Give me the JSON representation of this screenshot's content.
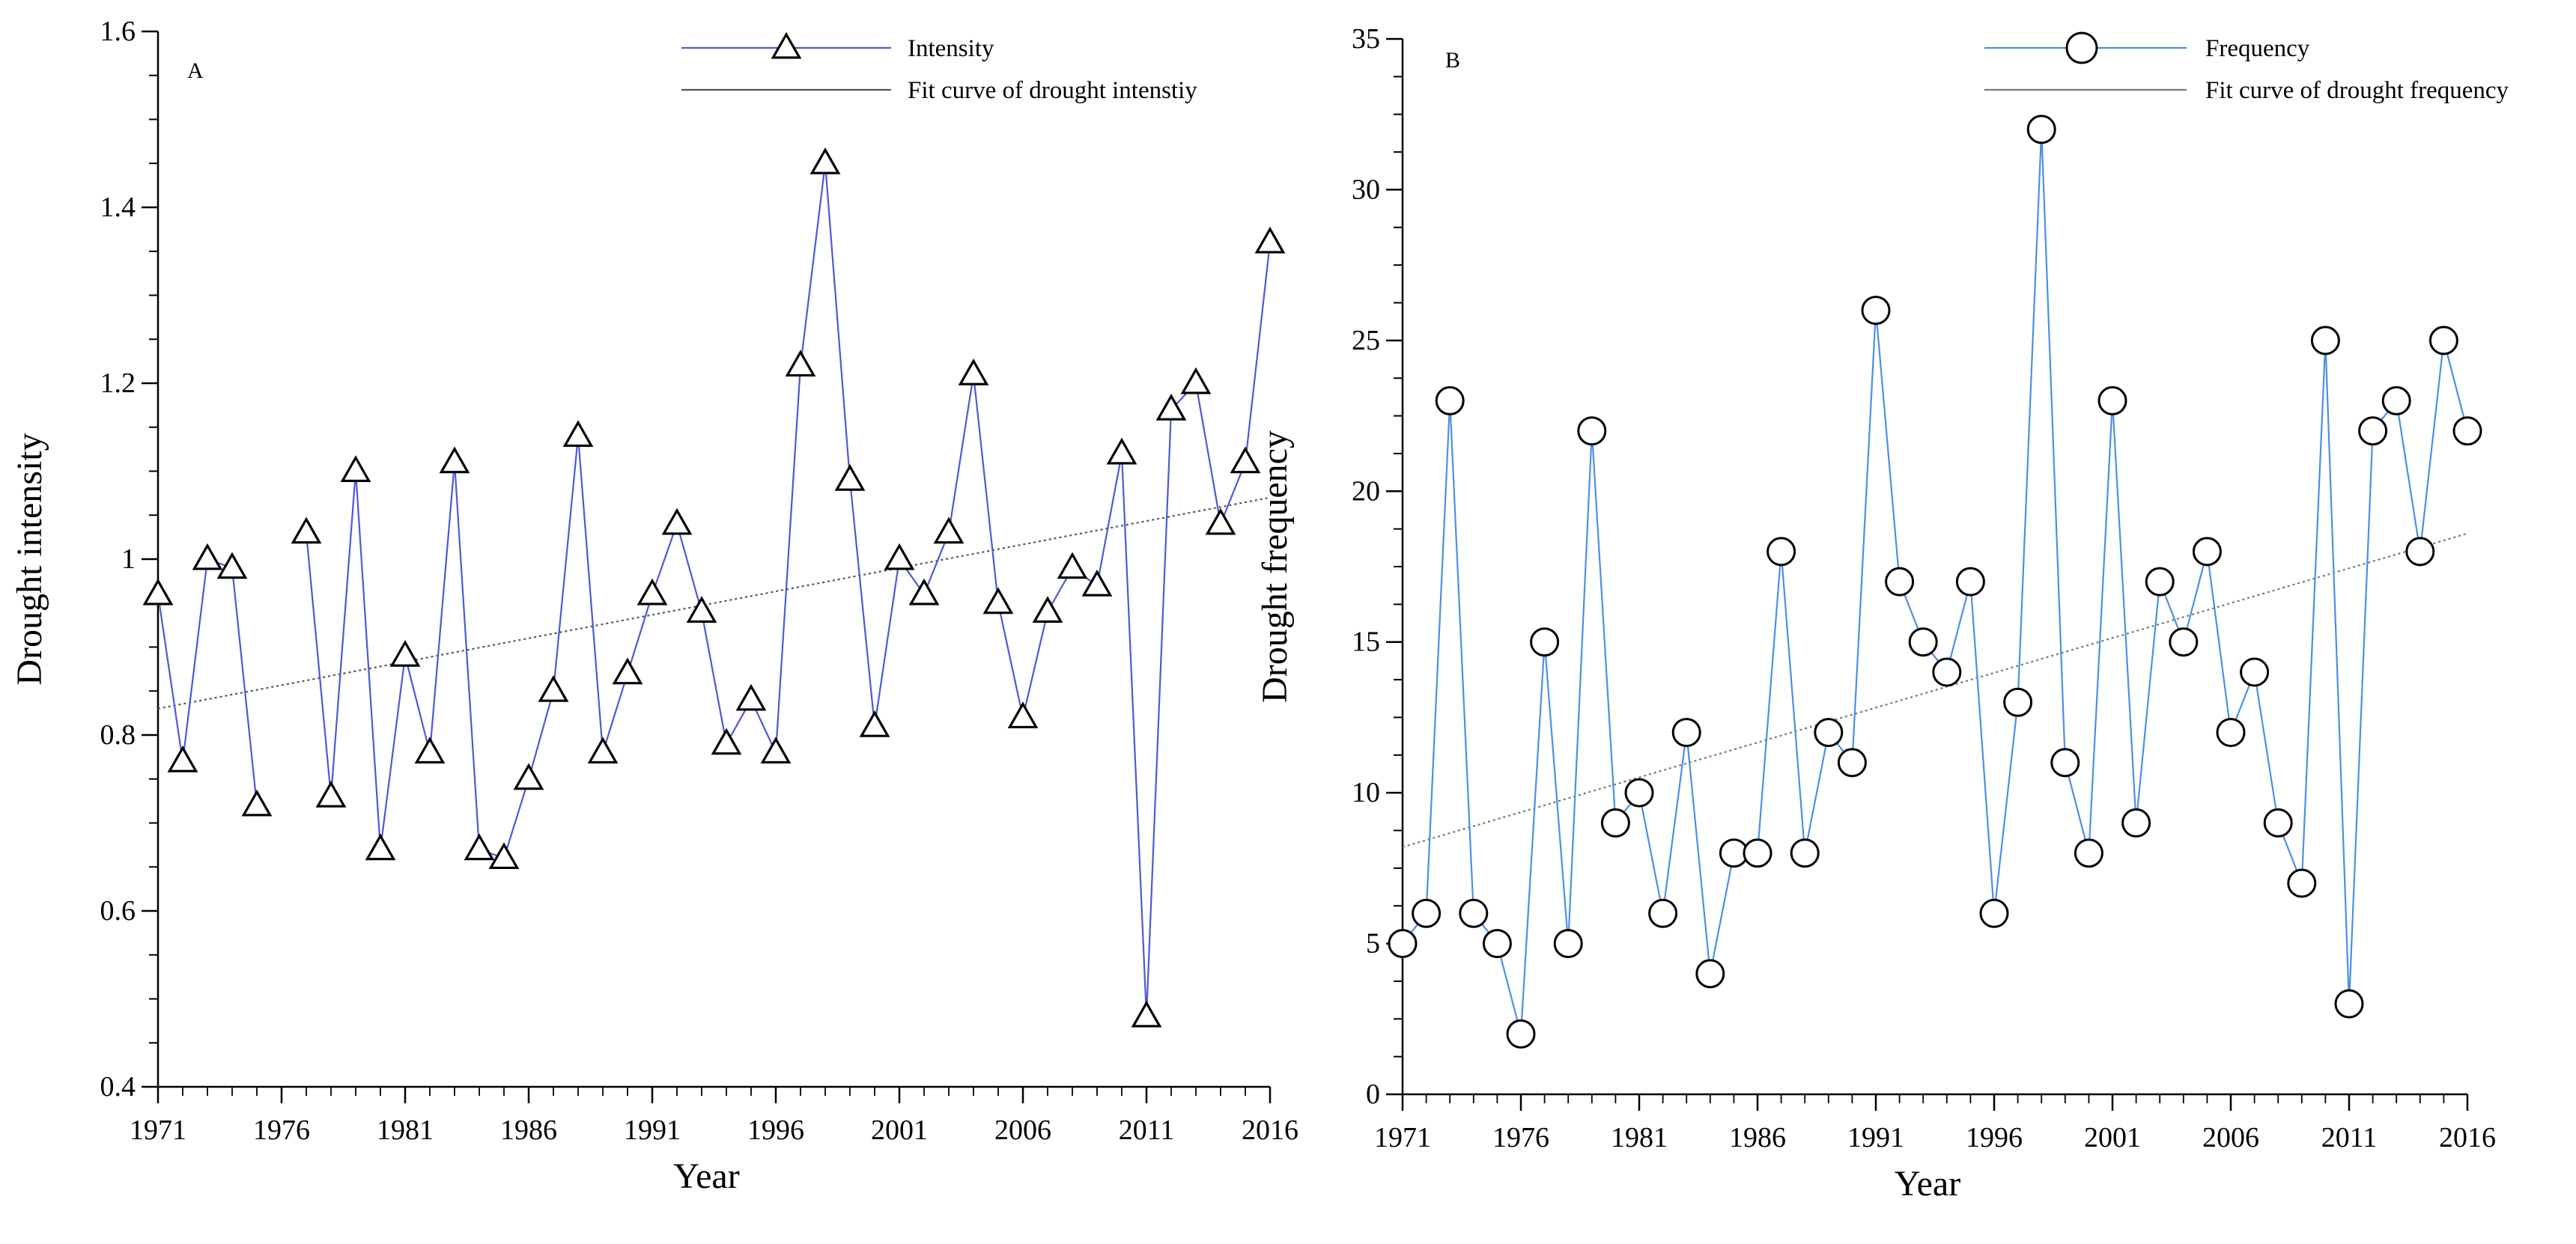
{
  "chart_data": [
    {
      "type": "line",
      "panel": "A",
      "title": "",
      "xlabel": "Year",
      "ylabel": "Drought intensity",
      "xlim": [
        1971,
        2016
      ],
      "ylim": [
        0.4,
        1.6
      ],
      "xticks": [
        1971,
        1976,
        1981,
        1986,
        1991,
        1996,
        2001,
        2006,
        2011,
        2016
      ],
      "yticks": [
        0.4,
        0.6,
        0.8,
        1.0,
        1.2,
        1.4,
        1.6
      ],
      "ytick_labels": [
        "0.4",
        "0.6",
        "0.8",
        "1",
        "1.2",
        "1.4",
        "1.6"
      ],
      "grid": false,
      "legend_position": "top-right",
      "series": [
        {
          "name": "Intensity",
          "marker": "triangle",
          "color": "#4a5ad6",
          "x": [
            1971,
            1972,
            1973,
            1974,
            1975,
            1976,
            1977,
            1978,
            1979,
            1980,
            1981,
            1982,
            1983,
            1984,
            1985,
            1986,
            1987,
            1988,
            1989,
            1990,
            1991,
            1992,
            1993,
            1994,
            1995,
            1996,
            1997,
            1998,
            1999,
            2000,
            2001,
            2002,
            2003,
            2004,
            2005,
            2006,
            2007,
            2008,
            2009,
            2010,
            2011,
            2012,
            2013,
            2014,
            2015,
            2016
          ],
          "values": [
            0.96,
            0.77,
            1.0,
            0.99,
            0.72,
            null,
            1.03,
            0.73,
            1.1,
            0.67,
            0.89,
            0.78,
            1.11,
            0.67,
            0.66,
            0.75,
            0.85,
            1.14,
            0.78,
            0.87,
            0.96,
            1.04,
            0.94,
            0.79,
            0.84,
            0.78,
            1.22,
            1.45,
            1.09,
            0.81,
            1.0,
            0.96,
            1.03,
            1.21,
            0.95,
            0.82,
            0.94,
            0.99,
            0.97,
            1.12,
            0.48,
            1.17,
            1.2,
            1.04,
            1.11,
            1.36
          ]
        },
        {
          "name": "Fit curve of drought  intenstiy",
          "type": "trend",
          "color": "#555555",
          "x": [
            1971,
            2016
          ],
          "values": [
            0.83,
            1.07
          ]
        }
      ]
    },
    {
      "type": "line",
      "panel": "B",
      "title": "",
      "xlabel": "Year",
      "ylabel": "Drought frequency",
      "xlim": [
        1971,
        2016
      ],
      "ylim": [
        0,
        35
      ],
      "xticks": [
        1971,
        1976,
        1981,
        1986,
        1991,
        1996,
        2001,
        2006,
        2011,
        2016
      ],
      "yticks": [
        0,
        5,
        10,
        15,
        20,
        25,
        30,
        35
      ],
      "ytick_labels": [
        "0",
        "5",
        "10",
        "15",
        "20",
        "25",
        "30",
        "35"
      ],
      "grid": false,
      "legend_position": "top-right",
      "series": [
        {
          "name": "Frequency",
          "marker": "circle",
          "color": "#4a90e2",
          "x": [
            1971,
            1972,
            1973,
            1974,
            1975,
            1976,
            1977,
            1978,
            1979,
            1980,
            1981,
            1982,
            1983,
            1984,
            1985,
            1986,
            1987,
            1988,
            1989,
            1990,
            1991,
            1992,
            1993,
            1994,
            1995,
            1996,
            1997,
            1998,
            1999,
            2000,
            2001,
            2002,
            2003,
            2004,
            2005,
            2006,
            2007,
            2008,
            2009,
            2010,
            2011,
            2012,
            2013,
            2014,
            2015,
            2016
          ],
          "values": [
            5,
            6,
            23,
            6,
            5,
            2,
            15,
            5,
            22,
            9,
            10,
            6,
            12,
            4,
            8,
            8,
            18,
            8,
            12,
            11,
            26,
            17,
            15,
            14,
            17,
            6,
            13,
            32,
            11,
            8,
            23,
            9,
            17,
            15,
            18,
            12,
            14,
            9,
            7,
            25,
            3,
            22,
            23,
            18,
            25,
            22
          ]
        },
        {
          "name": "Fit curve of drought frequency",
          "type": "trend",
          "color": "#777777",
          "x": [
            1971,
            2016
          ],
          "values": [
            8.2,
            18.6
          ]
        }
      ]
    }
  ]
}
